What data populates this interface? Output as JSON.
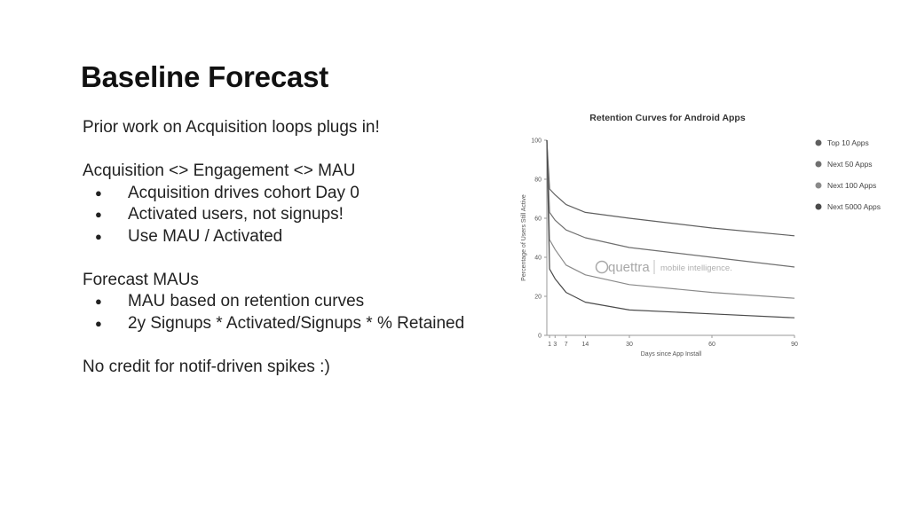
{
  "slide": {
    "title": "Baseline Forecast",
    "intro": "Prior work on Acquisition loops plugs in!",
    "section1": {
      "heading": "Acquisition <> Engagement <> MAU",
      "bullets": [
        "Acquisition drives cohort Day 0",
        "Activated users, not signups!",
        "Use MAU / Activated"
      ]
    },
    "section2": {
      "heading": "Forecast MAUs",
      "bullets": [
        "MAU based on retention curves",
        "2y Signups * Activated/Signups * % Retained"
      ]
    },
    "closing": "No credit for notif-driven spikes :)"
  },
  "watermark": {
    "brand": "quettra",
    "tagline": "mobile intelligence."
  },
  "chart_data": {
    "type": "line",
    "title": "Retention Curves for Android Apps",
    "xlabel": "Days since App Install",
    "ylabel": "Percentage of Users Still Active",
    "xlim": [
      0,
      90
    ],
    "ylim": [
      0,
      100
    ],
    "xticks": [
      1,
      3,
      7,
      14,
      30,
      60,
      90
    ],
    "yticks": [
      0,
      20,
      40,
      60,
      80,
      100
    ],
    "legend_position": "right",
    "grid": false,
    "series": [
      {
        "name": "Top 10 Apps",
        "color": "#5f5f5f",
        "x": [
          0,
          1,
          3,
          7,
          14,
          30,
          60,
          90
        ],
        "y": [
          100,
          75,
          72,
          67,
          63,
          60,
          55,
          51
        ]
      },
      {
        "name": "Next 50 Apps",
        "color": "#6f6f6f",
        "x": [
          0,
          1,
          3,
          7,
          14,
          30,
          60,
          90
        ],
        "y": [
          100,
          63,
          59,
          54,
          50,
          45,
          40,
          35
        ]
      },
      {
        "name": "Next 100 Apps",
        "color": "#8a8a8a",
        "x": [
          0,
          1,
          3,
          7,
          14,
          30,
          60,
          90
        ],
        "y": [
          100,
          49,
          44,
          36,
          31,
          26,
          22,
          19
        ]
      },
      {
        "name": "Next 5000 Apps",
        "color": "#4a4a4a",
        "x": [
          0,
          1,
          3,
          7,
          14,
          30,
          60,
          90
        ],
        "y": [
          100,
          34,
          29,
          22,
          17,
          13,
          11,
          9
        ]
      }
    ]
  }
}
